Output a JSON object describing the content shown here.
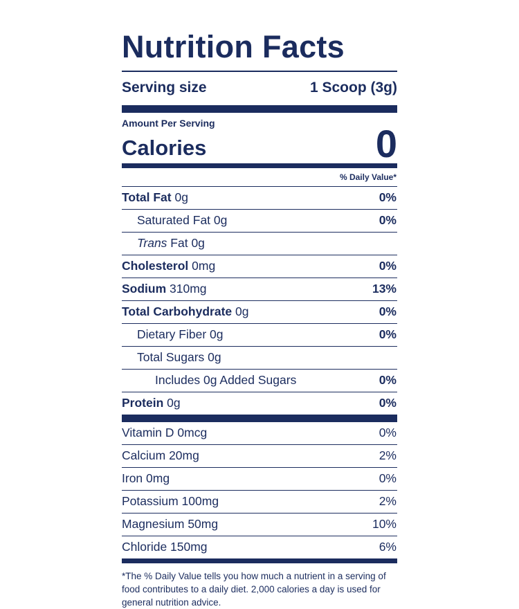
{
  "label": {
    "title": "Nutrition Facts",
    "serving_size_label": "Serving size",
    "serving_size_value": "1 Scoop (3g)",
    "amount_per_serving": "Amount Per Serving",
    "calories_label": "Calories",
    "calories_value": "0",
    "daily_value_header": "% Daily Value*",
    "brand_navy": "#1b2c5e",
    "background": "#ffffff",
    "nutrients": [
      {
        "bold": "Total Fat",
        "italic": "",
        "rest": " 0g",
        "dv": "0%"
      },
      {
        "bold": "",
        "italic": "",
        "rest": "Saturated Fat 0g",
        "dv": "0%"
      },
      {
        "bold": "",
        "italic": "Trans",
        "rest": " Fat 0g",
        "dv": ""
      },
      {
        "bold": "Cholesterol",
        "italic": "",
        "rest": " 0mg",
        "dv": "0%"
      },
      {
        "bold": "Sodium",
        "italic": "",
        "rest": " 310mg",
        "dv": "13%"
      },
      {
        "bold": "Total Carbohydrate",
        "italic": "",
        "rest": " 0g",
        "dv": "0%"
      },
      {
        "bold": "",
        "italic": "",
        "rest": "Dietary Fiber 0g",
        "dv": "0%"
      },
      {
        "bold": "",
        "italic": "",
        "rest": "Total Sugars 0g",
        "dv": ""
      },
      {
        "bold": "",
        "italic": "",
        "rest": "Includes 0g Added Sugars",
        "dv": "0%"
      },
      {
        "bold": "Protein",
        "italic": "",
        "rest": " 0g",
        "dv": "0%"
      }
    ],
    "vitamins": [
      {
        "name": "Vitamin D 0mcg",
        "dv": "0%"
      },
      {
        "name": "Calcium 20mg",
        "dv": "2%"
      },
      {
        "name": "Iron 0mg",
        "dv": "0%"
      },
      {
        "name": "Potassium 100mg",
        "dv": "2%"
      },
      {
        "name": "Magnesium 50mg",
        "dv": "10%"
      },
      {
        "name": "Chloride 150mg",
        "dv": "6%"
      }
    ],
    "footnote": "*The % Daily Value tells you how much a nutrient in a serving of food contributes to a daily diet. 2,000 calories a day is used for general nutrition advice."
  }
}
